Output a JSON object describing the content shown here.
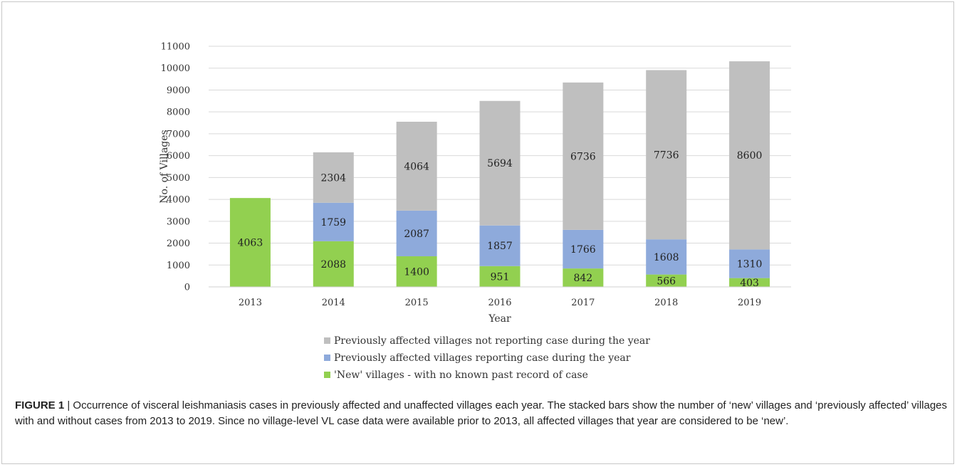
{
  "chart_data": {
    "type": "bar",
    "stacked": true,
    "categories": [
      "2013",
      "2014",
      "2015",
      "2016",
      "2017",
      "2018",
      "2019"
    ],
    "series": [
      {
        "name": "'New' villages - with no known past record of case",
        "color": "#92d050",
        "values": [
          4063,
          2088,
          1400,
          951,
          842,
          566,
          403
        ]
      },
      {
        "name": "Previously affected villages reporting case during the year",
        "color": "#8eaadb",
        "values": [
          0,
          1759,
          2087,
          1857,
          1766,
          1608,
          1310
        ]
      },
      {
        "name": "Previously affected villages not reporting case during the year",
        "color": "#bfbfbf",
        "values": [
          0,
          2304,
          4064,
          5694,
          6736,
          7736,
          8600
        ]
      }
    ],
    "xlabel": "Year",
    "ylabel": "No. of Villages",
    "ylim": [
      0,
      11000
    ],
    "ytick_step": 1000,
    "grid": true,
    "legend_position": "bottom",
    "legend_order": [
      2,
      1,
      0
    ]
  },
  "caption": {
    "label": "FIGURE 1",
    "separator": " | ",
    "text": "Occurrence of visceral leishmaniasis cases in previously affected and unaffected villages each year. The stacked bars show the number of ‘new’ villages and ‘previously affected’ villages with and without cases from 2013 to 2019. Since no village-level VL case data were available prior to 2013, all affected villages that year are considered to be ‘new’."
  }
}
